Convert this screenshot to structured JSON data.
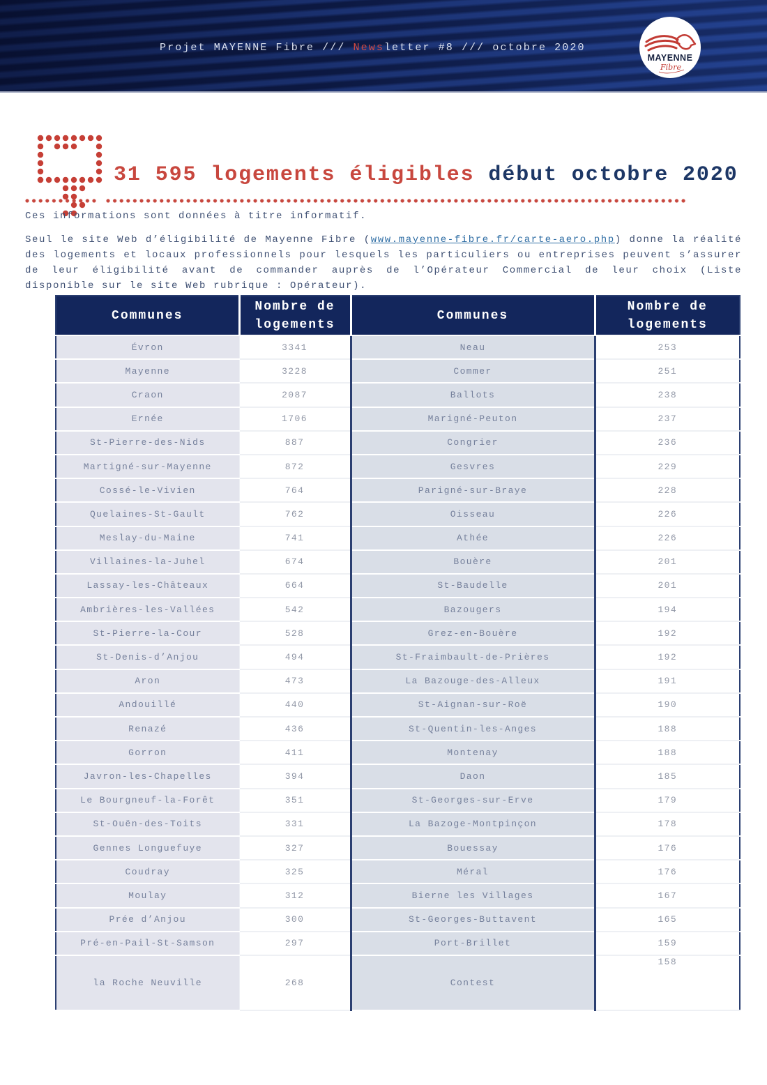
{
  "masthead": {
    "pre": "Projet MAYENNE Fibre /// ",
    "news": "News",
    "post": "letter #8 /// octobre 2020"
  },
  "logo": {
    "name": "MAYENNE",
    "sub": "Fibre"
  },
  "headline": {
    "red": "31 595 logements éligibles",
    "navy": " début octobre 2020"
  },
  "intro": {
    "p1": "Ces informations sont données à titre informatif.",
    "p2_pre": "Seul le site Web d’éligibilité de Mayenne Fibre (",
    "p2_link": "www.mayenne-fibre.fr/carte-aero.php",
    "p2_post": ") donne la réalité des logements et locaux professionnels pour lesquels les particuliers ou entreprises peuvent s’assurer de leur éligibilité avant de commander auprès de l’Opérateur Commercial de leur choix (Liste disponible sur le site Web rubrique : Opérateur)."
  },
  "table": {
    "headers": [
      "Communes",
      "Nombre de logements",
      "Communes",
      "Nombre de logements"
    ],
    "rows": [
      {
        "c1": "Évron",
        "n1": "3341",
        "c2": "Neau",
        "n2": "253"
      },
      {
        "c1": "Mayenne",
        "n1": "3228",
        "c2": "Commer",
        "n2": "251"
      },
      {
        "c1": "Craon",
        "n1": "2087",
        "c2": "Ballots",
        "n2": "238"
      },
      {
        "c1": "Ernée",
        "n1": "1706",
        "c2": "Marigné-Peuton",
        "n2": "237"
      },
      {
        "c1": "St-Pierre-des-Nids",
        "n1": "887",
        "c2": "Congrier",
        "n2": "236"
      },
      {
        "c1": "Martigné-sur-Mayenne",
        "n1": "872",
        "c2": "Gesvres",
        "n2": "229"
      },
      {
        "c1": "Cossé-le-Vivien",
        "n1": "764",
        "c2": "Parigné-sur-Braye",
        "n2": "228"
      },
      {
        "c1": "Quelaines-St-Gault",
        "n1": "762",
        "c2": "Oisseau",
        "n2": "226"
      },
      {
        "c1": "Meslay-du-Maine",
        "n1": "741",
        "c2": "Athée",
        "n2": "226"
      },
      {
        "c1": "Villaines-la-Juhel",
        "n1": "674",
        "c2": "Bouère",
        "n2": "201"
      },
      {
        "c1": "Lassay-les-Châteaux",
        "n1": "664",
        "c2": "St-Baudelle",
        "n2": "201"
      },
      {
        "c1": "Ambrières-les-Vallées",
        "n1": "542",
        "c2": "Bazougers",
        "n2": "194"
      },
      {
        "c1": "St-Pierre-la-Cour",
        "n1": "528",
        "c2": "Grez-en-Bouère",
        "n2": "192"
      },
      {
        "c1": "St-Denis-d’Anjou",
        "n1": "494",
        "c2": "St-Fraimbault-de-Prières",
        "n2": "192"
      },
      {
        "c1": "Aron",
        "n1": "473",
        "c2": "La Bazouge-des-Alleux",
        "n2": "191"
      },
      {
        "c1": "Andouillé",
        "n1": "440",
        "c2": "St-Aignan-sur-Roë",
        "n2": "190"
      },
      {
        "c1": "Renazé",
        "n1": "436",
        "c2": "St-Quentin-les-Anges",
        "n2": "188"
      },
      {
        "c1": "Gorron",
        "n1": "411",
        "c2": "Montenay",
        "n2": "188"
      },
      {
        "c1": "Javron-les-Chapelles",
        "n1": "394",
        "c2": "Daon",
        "n2": "185"
      },
      {
        "c1": "Le Bourgneuf-la-Forêt",
        "n1": "351",
        "c2": "St-Georges-sur-Erve",
        "n2": "179"
      },
      {
        "c1": "St-Ouën-des-Toits",
        "n1": "331",
        "c2": "La Bazoge-Montpinçon",
        "n2": "178"
      },
      {
        "c1": "Gennes Longuefuye",
        "n1": "327",
        "c2": "Bouessay",
        "n2": "176"
      },
      {
        "c1": "Coudray",
        "n1": "325",
        "c2": "Méral",
        "n2": "176"
      },
      {
        "c1": "Moulay",
        "n1": "312",
        "c2": "Bierne les Villages",
        "n2": "167"
      },
      {
        "c1": "Prée d’Anjou",
        "n1": "300",
        "c2": "St-Georges-Buttavent",
        "n2": "165"
      },
      {
        "c1": "Pré-en-Pail-St-Samson",
        "n1": "297",
        "c2": "Port-Brillet",
        "n2": "159"
      },
      {
        "c1": "la Roche Neuville",
        "n1": "268",
        "c2": "Contest",
        "n2": "158"
      }
    ]
  },
  "colors": {
    "accent_red": "#c8473e",
    "navy": "#1d3766",
    "band_bg": "#13255c",
    "table_header_bg": "#13265c",
    "commune_col1_bg": "#e3e4ed",
    "commune_col2_bg": "#d9dee7",
    "link_blue": "#2e6da4"
  }
}
